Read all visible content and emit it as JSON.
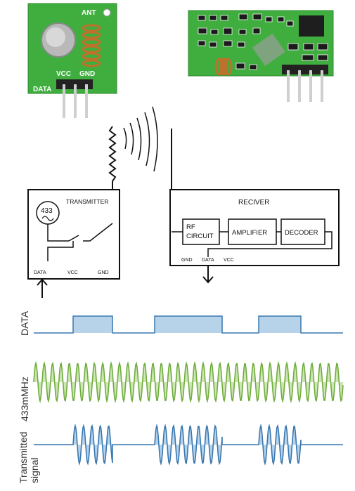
{
  "tx_module": {
    "ant_label": "ANT",
    "vcc_label": "VCC",
    "gnd_label": "GND",
    "data_label": "DATA"
  },
  "transmitter": {
    "title": "TRANSMITTER",
    "osc_label": "433",
    "pin_data": "DATA",
    "pin_vcc": "VCC",
    "pin_gnd": "GND"
  },
  "receiver": {
    "title": "RECIVER",
    "rf_label_1": "RF",
    "rf_label_2": "CIRCUIT",
    "amp_label": "AMPLIFIER",
    "dec_label": "DECODER",
    "pin_gnd": "GND",
    "pin_data": "DATA",
    "pin_vcc": "VCC"
  },
  "signals": {
    "data_label": "DATA",
    "carrier_label": "433mMHz",
    "tx_label_1": "Transmitted",
    "tx_label_2": "signal"
  },
  "colors": {
    "pcb_green": "#3fae3f",
    "data_fill": "#b7d3ea",
    "data_line": "#3a78b0",
    "carrier": "#6fae3c",
    "carrier_fill": "#cfe5b8",
    "tx_wave": "#3a78b0",
    "tx_fill": "#b7d3ea"
  }
}
